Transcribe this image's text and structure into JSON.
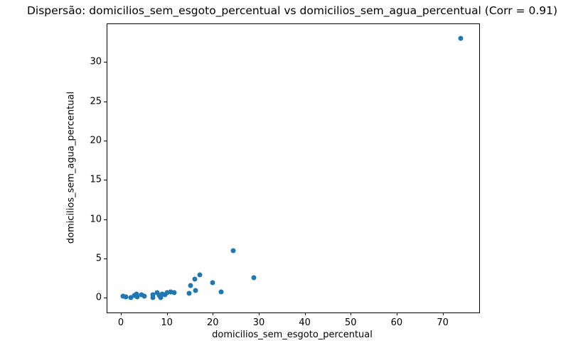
{
  "chart_data": {
    "type": "scatter",
    "title": "Dispersão: domicilios_sem_esgoto_percentual vs domicilios_sem_agua_percentual (Corr = 0.91)",
    "xlabel": "domicilios_sem_esgoto_percentual",
    "ylabel": "domicilios_sem_agua_percentual",
    "correlation": 0.91,
    "marker_color": "#1f77b4",
    "grid": false,
    "legend": "none",
    "xlim": [
      -3.1,
      77.8
    ],
    "ylim": [
      -1.8,
      34.9
    ],
    "xticks": [
      0,
      10,
      20,
      30,
      40,
      50,
      60,
      70
    ],
    "yticks": [
      0,
      5,
      10,
      15,
      20,
      25,
      30
    ],
    "points": [
      [
        0.4,
        0.2
      ],
      [
        1.1,
        0.1
      ],
      [
        2.2,
        0.05
      ],
      [
        3.0,
        0.3
      ],
      [
        3.4,
        0.45
      ],
      [
        3.6,
        0.1
      ],
      [
        4.5,
        0.35
      ],
      [
        5.1,
        0.2
      ],
      [
        6.9,
        0.35
      ],
      [
        7.0,
        0.05
      ],
      [
        7.9,
        0.6
      ],
      [
        8.3,
        0.3
      ],
      [
        8.7,
        0.05
      ],
      [
        9.0,
        0.5
      ],
      [
        9.5,
        0.4
      ],
      [
        10.1,
        0.65
      ],
      [
        10.8,
        0.7
      ],
      [
        11.6,
        0.65
      ],
      [
        14.9,
        0.55
      ],
      [
        15.1,
        1.55
      ],
      [
        16.1,
        2.4
      ],
      [
        16.2,
        0.95
      ],
      [
        17.2,
        2.9
      ],
      [
        20.0,
        1.95
      ],
      [
        21.8,
        0.75
      ],
      [
        24.5,
        6.0
      ],
      [
        28.9,
        2.5
      ],
      [
        74.0,
        33.0
      ]
    ]
  }
}
